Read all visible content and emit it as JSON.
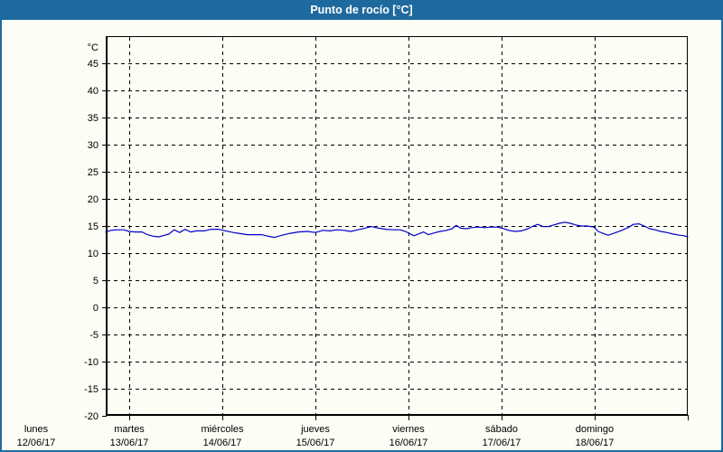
{
  "window": {
    "title": "Punto de rocío [°C]"
  },
  "colors": {
    "titlebar_bg": "#1E6A9E",
    "window_border": "#1E6A9E",
    "panel_bg": "#FCFDF5",
    "grid": "#000000",
    "axis": "#000000",
    "label_text": "#000000",
    "title_text": "#FFFFFF",
    "line": "#0000CC"
  },
  "chart_data": {
    "type": "line",
    "title": "Punto de rocío [°C]",
    "legend_position": "none",
    "grid": "dashed",
    "y_axis": {
      "unit_label": "°C",
      "ylim": [
        -20,
        50
      ],
      "tick_step": 5,
      "tick_labels": [
        45,
        40,
        35,
        30,
        25,
        20,
        15,
        10,
        5,
        0,
        -5,
        -10,
        -15,
        -20
      ],
      "gridline_values": [
        45,
        40,
        35,
        30,
        25,
        20,
        15,
        10,
        5,
        0,
        -5,
        -10,
        -15
      ]
    },
    "x_axis": {
      "unit": "hours since 12/06/17 00:00",
      "visible_range_hours": [
        17.9,
        168
      ],
      "day_tick_hours": [
        0,
        24,
        48,
        72,
        96,
        120,
        144,
        168
      ],
      "days": [
        {
          "weekday": "lunes",
          "date": "12/06/17"
        },
        {
          "weekday": "martes",
          "date": "13/06/17"
        },
        {
          "weekday": "miércoles",
          "date": "14/06/17"
        },
        {
          "weekday": "jueves",
          "date": "15/06/17"
        },
        {
          "weekday": "viernes",
          "date": "16/06/17"
        },
        {
          "weekday": "sábado",
          "date": "17/06/17"
        },
        {
          "weekday": "domingo",
          "date": "18/06/17"
        }
      ]
    },
    "series": [
      {
        "name": "Punto de rocío",
        "unit": "°C",
        "points_hours_temp": [
          [
            17.9,
            13.9
          ],
          [
            19.3,
            14.2
          ],
          [
            21.0,
            14.3
          ],
          [
            22.6,
            14.3
          ],
          [
            24.0,
            14.0
          ],
          [
            25.6,
            13.9
          ],
          [
            27.3,
            13.9
          ],
          [
            28.7,
            13.4
          ],
          [
            30.3,
            13.1
          ],
          [
            31.7,
            13.0
          ],
          [
            32.6,
            13.2
          ],
          [
            34.2,
            13.5
          ],
          [
            35.6,
            14.3
          ],
          [
            37.0,
            13.8
          ],
          [
            38.4,
            14.4
          ],
          [
            39.8,
            13.9
          ],
          [
            41.4,
            14.1
          ],
          [
            43.3,
            14.1
          ],
          [
            45.2,
            14.4
          ],
          [
            47.0,
            14.4
          ],
          [
            48.9,
            14.1
          ],
          [
            50.8,
            13.8
          ],
          [
            52.6,
            13.6
          ],
          [
            54.5,
            13.4
          ],
          [
            56.4,
            13.4
          ],
          [
            58.2,
            13.4
          ],
          [
            59.9,
            13.1
          ],
          [
            61.5,
            12.9
          ],
          [
            63.4,
            13.3
          ],
          [
            65.2,
            13.6
          ],
          [
            67.6,
            13.9
          ],
          [
            69.9,
            14.0
          ],
          [
            72.0,
            13.8
          ],
          [
            73.9,
            14.2
          ],
          [
            75.7,
            14.1
          ],
          [
            77.6,
            14.3
          ],
          [
            79.4,
            14.2
          ],
          [
            81.1,
            14.0
          ],
          [
            82.9,
            14.3
          ],
          [
            84.8,
            14.6
          ],
          [
            86.4,
            14.9
          ],
          [
            88.3,
            14.6
          ],
          [
            90.2,
            14.4
          ],
          [
            92.0,
            14.3
          ],
          [
            93.9,
            14.3
          ],
          [
            95.5,
            13.9
          ],
          [
            97.4,
            13.2
          ],
          [
            98.8,
            13.6
          ],
          [
            99.9,
            13.9
          ],
          [
            101.1,
            13.4
          ],
          [
            102.5,
            13.7
          ],
          [
            104.1,
            14.0
          ],
          [
            105.8,
            14.2
          ],
          [
            107.2,
            14.5
          ],
          [
            108.3,
            15.1
          ],
          [
            109.5,
            14.6
          ],
          [
            110.9,
            14.5
          ],
          [
            112.3,
            14.7
          ],
          [
            113.9,
            14.8
          ],
          [
            115.6,
            14.7
          ],
          [
            117.2,
            14.8
          ],
          [
            118.8,
            14.8
          ],
          [
            120.2,
            14.6
          ],
          [
            121.8,
            14.2
          ],
          [
            123.5,
            14.0
          ],
          [
            125.1,
            14.1
          ],
          [
            126.8,
            14.5
          ],
          [
            128.2,
            15.0
          ],
          [
            129.3,
            15.3
          ],
          [
            130.7,
            14.9
          ],
          [
            132.1,
            14.9
          ],
          [
            133.5,
            15.2
          ],
          [
            134.9,
            15.5
          ],
          [
            136.3,
            15.7
          ],
          [
            137.7,
            15.5
          ],
          [
            139.1,
            15.2
          ],
          [
            140.5,
            15.0
          ],
          [
            142.1,
            15.0
          ],
          [
            143.8,
            14.8
          ],
          [
            144.9,
            14.0
          ],
          [
            146.3,
            13.6
          ],
          [
            147.5,
            13.3
          ],
          [
            149.1,
            13.7
          ],
          [
            151.0,
            14.2
          ],
          [
            152.6,
            14.7
          ],
          [
            154.0,
            15.3
          ],
          [
            155.4,
            15.4
          ],
          [
            156.8,
            15.0
          ],
          [
            158.2,
            14.5
          ],
          [
            159.6,
            14.3
          ],
          [
            161.0,
            14.0
          ],
          [
            162.6,
            13.8
          ],
          [
            164.3,
            13.5
          ],
          [
            165.9,
            13.3
          ],
          [
            167.1,
            13.2
          ],
          [
            168.0,
            13.0
          ]
        ]
      }
    ]
  }
}
